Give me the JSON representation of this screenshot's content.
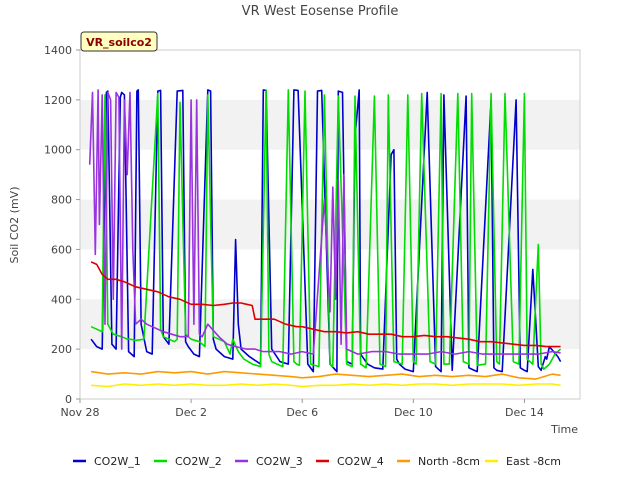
{
  "chart_data": {
    "type": "line",
    "title": "VR West Eosense Profile",
    "badge": "VR_soilco2",
    "xlabel": "Time",
    "ylabel": "Soil CO2 (mV)",
    "xlim": [
      0,
      18
    ],
    "ylim": [
      0,
      1400
    ],
    "yticks": [
      0,
      200,
      400,
      600,
      800,
      1000,
      1200,
      1400
    ],
    "xticks": [
      {
        "value": 0,
        "label": "Nov 28"
      },
      {
        "value": 4,
        "label": "Dec 2"
      },
      {
        "value": 8,
        "label": "Dec 6"
      },
      {
        "value": 12,
        "label": "Dec 10"
      },
      {
        "value": 16,
        "label": "Dec 14"
      }
    ],
    "grid": "horizontal-bands",
    "legend": "bottom",
    "series": [
      {
        "name": "CO2W_1",
        "color": "#0000cc",
        "x": [
          0.4,
          0.6,
          0.8,
          0.95,
          1.0,
          1.05,
          1.15,
          1.3,
          1.45,
          1.5,
          1.6,
          1.75,
          1.95,
          2.05,
          2.1,
          2.2,
          2.4,
          2.6,
          2.8,
          2.9,
          3.0,
          3.2,
          3.5,
          3.7,
          3.8,
          3.9,
          4.1,
          4.3,
          4.6,
          4.7,
          4.8,
          4.9,
          5.2,
          5.5,
          5.6,
          5.7,
          5.8,
          6.1,
          6.5,
          6.6,
          6.7,
          6.9,
          7.2,
          7.5,
          7.7,
          7.85,
          8.2,
          8.4,
          8.55,
          8.7,
          9.0,
          9.25,
          9.3,
          9.45,
          9.6,
          9.8,
          9.9,
          10.05,
          10.1,
          10.35,
          10.6,
          10.9,
          11.2,
          11.3,
          11.4,
          11.5,
          11.7,
          12.0,
          12.5,
          12.8,
          12.9,
          13.0,
          13.1,
          13.4,
          13.9,
          14.0,
          14.1,
          14.3,
          14.8,
          14.9,
          15.0,
          15.2,
          15.7,
          15.85,
          16.0,
          16.1,
          16.3,
          16.5,
          16.6,
          16.75,
          16.8,
          16.9,
          17.2,
          17.3
        ],
        "y": [
          240,
          210,
          200,
          1230,
          1235,
          900,
          220,
          200,
          1210,
          1230,
          1220,
          190,
          170,
          1235,
          1240,
          300,
          190,
          180,
          1235,
          1238,
          250,
          220,
          1235,
          1238,
          230,
          210,
          180,
          170,
          1240,
          1235,
          240,
          200,
          170,
          160,
          640,
          300,
          200,
          170,
          140,
          1240,
          1238,
          200,
          150,
          140,
          1240,
          1238,
          140,
          110,
          1235,
          1238,
          140,
          110,
          1235,
          1230,
          150,
          140,
          1050,
          1240,
          180,
          140,
          125,
          120,
          980,
          1000,
          160,
          140,
          120,
          110,
          1230,
          130,
          120,
          110,
          1220,
          115,
          1215,
          125,
          120,
          110,
          1200,
          125,
          115,
          110,
          1200,
          125,
          115,
          110,
          520,
          130,
          115,
          170,
          160,
          210,
          170,
          150
        ]
      },
      {
        "name": "CO2W_2",
        "color": "#00dd00",
        "x": [
          0.4,
          0.6,
          0.8,
          0.9,
          1.0,
          1.2,
          1.5,
          1.7,
          1.8,
          2.0,
          2.3,
          2.8,
          2.9,
          3.0,
          3.2,
          3.4,
          3.5,
          3.6,
          3.8,
          4.0,
          4.3,
          4.5,
          4.6,
          4.8,
          5.0,
          5.2,
          5.4,
          5.5,
          5.7,
          5.9,
          6.2,
          6.5,
          6.7,
          6.8,
          6.9,
          7.1,
          7.3,
          7.5,
          7.7,
          7.8,
          7.9,
          8.1,
          8.3,
          8.6,
          8.8,
          9.0,
          9.1,
          9.3,
          9.6,
          9.8,
          9.9,
          10.1,
          10.3,
          10.6,
          10.8,
          11.0,
          11.1,
          11.3,
          11.6,
          11.8,
          12.0,
          12.1,
          12.3,
          12.6,
          12.8,
          13.0,
          13.1,
          13.3,
          13.6,
          13.8,
          14.0,
          14.1,
          14.3,
          14.6,
          14.8,
          15.0,
          15.1,
          15.3,
          15.6,
          15.8,
          16.0,
          16.1,
          16.3,
          16.5,
          16.6,
          16.7,
          16.9,
          17.1,
          17.3
        ],
        "y": [
          290,
          280,
          270,
          1220,
          300,
          260,
          250,
          240,
          240,
          235,
          240,
          1225,
          280,
          250,
          240,
          230,
          240,
          1190,
          260,
          240,
          230,
          210,
          1220,
          250,
          240,
          230,
          180,
          240,
          190,
          160,
          140,
          130,
          1240,
          180,
          150,
          140,
          130,
          1240,
          150,
          140,
          135,
          1235,
          140,
          130,
          1220,
          140,
          130,
          1215,
          140,
          130,
          1215,
          140,
          125,
          1215,
          140,
          130,
          1220,
          150,
          140,
          1220,
          150,
          140,
          1225,
          150,
          140,
          1225,
          140,
          140,
          1225,
          150,
          140,
          1225,
          135,
          140,
          1225,
          150,
          140,
          1225,
          150,
          140,
          1225,
          160,
          140,
          620,
          140,
          120,
          140,
          180,
          200
        ]
      },
      {
        "name": "CO2W_3",
        "color": "#9933dd",
        "x": [
          0.35,
          0.45,
          0.55,
          0.65,
          0.7,
          0.8,
          0.9,
          1.0,
          1.1,
          1.2,
          1.3,
          1.4,
          1.5,
          1.6,
          1.7,
          1.8,
          1.9,
          2.0,
          2.2,
          2.4,
          2.6,
          2.8,
          3.0,
          3.3,
          3.6,
          3.9,
          4.0,
          4.1,
          4.2,
          4.3,
          4.4,
          4.6,
          5.0,
          5.3,
          5.6,
          6.0,
          6.3,
          6.6,
          6.9,
          7.2,
          7.6,
          8.0,
          8.4,
          8.8,
          9.0,
          9.1,
          9.2,
          9.3,
          9.4,
          9.5,
          9.6,
          9.8,
          10.0,
          10.5,
          11.0,
          11.5,
          12.0,
          12.5,
          13.0,
          13.5,
          14.0,
          14.5,
          15.0,
          15.5,
          16.0,
          16.5,
          17.0,
          17.3
        ],
        "y": [
          940,
          1230,
          580,
          1240,
          700,
          1220,
          300,
          1230,
          1200,
          400,
          1230,
          1210,
          200,
          1200,
          900,
          1230,
          600,
          300,
          320,
          300,
          290,
          280,
          270,
          260,
          250,
          250,
          1200,
          300,
          1200,
          260,
          250,
          300,
          250,
          220,
          210,
          200,
          200,
          190,
          190,
          190,
          180,
          190,
          180,
          800,
          350,
          850,
          400,
          880,
          220,
          900,
          200,
          190,
          180,
          190,
          190,
          180,
          180,
          180,
          190,
          180,
          190,
          180,
          180,
          180,
          180,
          180,
          190,
          185
        ]
      },
      {
        "name": "CO2W_4",
        "color": "#dd0000",
        "x": [
          0.4,
          0.6,
          0.8,
          1.0,
          1.3,
          1.6,
          2.0,
          2.4,
          2.8,
          3.2,
          3.6,
          4.0,
          4.4,
          4.8,
          5.2,
          5.5,
          5.8,
          6.0,
          6.2,
          6.3,
          6.6,
          7.0,
          7.4,
          7.8,
          8.0,
          8.4,
          8.8,
          9.2,
          9.6,
          10.0,
          10.4,
          10.8,
          11.2,
          11.6,
          12.0,
          12.4,
          12.8,
          13.2,
          13.6,
          14.0,
          14.4,
          14.8,
          15.2,
          15.6,
          16.0,
          16.4,
          16.8,
          17.2,
          17.3
        ],
        "y": [
          550,
          540,
          500,
          480,
          480,
          470,
          450,
          440,
          430,
          410,
          400,
          380,
          380,
          375,
          380,
          385,
          385,
          380,
          375,
          320,
          320,
          320,
          300,
          290,
          290,
          280,
          270,
          270,
          265,
          270,
          260,
          260,
          260,
          250,
          250,
          255,
          250,
          250,
          245,
          240,
          230,
          230,
          225,
          220,
          215,
          215,
          210,
          210,
          210
        ]
      },
      {
        "name": "North -8cm",
        "color": "#ff9900",
        "x": [
          0.4,
          1.0,
          1.6,
          2.2,
          2.8,
          3.4,
          4.0,
          4.6,
          5.2,
          5.8,
          6.4,
          7.0,
          7.6,
          8.0,
          8.6,
          9.2,
          9.8,
          10.4,
          11.0,
          11.6,
          12.2,
          12.8,
          13.4,
          14.0,
          14.6,
          15.2,
          15.8,
          16.4,
          17.0,
          17.3
        ],
        "y": [
          110,
          100,
          105,
          100,
          110,
          105,
          110,
          100,
          110,
          105,
          100,
          95,
          90,
          85,
          90,
          100,
          95,
          90,
          95,
          100,
          90,
          95,
          90,
          95,
          90,
          100,
          85,
          80,
          100,
          95
        ]
      },
      {
        "name": "East -8cm",
        "color": "#ffee00",
        "x": [
          0.4,
          1.0,
          1.6,
          2.2,
          2.8,
          3.4,
          4.0,
          4.6,
          5.2,
          5.8,
          6.4,
          7.0,
          7.6,
          8.0,
          8.6,
          9.2,
          9.8,
          10.4,
          11.0,
          11.6,
          12.2,
          12.8,
          13.4,
          14.0,
          14.6,
          15.2,
          15.8,
          16.4,
          17.0,
          17.3
        ],
        "y": [
          55,
          50,
          60,
          55,
          60,
          55,
          60,
          55,
          55,
          60,
          55,
          60,
          55,
          50,
          55,
          55,
          60,
          55,
          60,
          55,
          60,
          60,
          55,
          60,
          60,
          60,
          55,
          60,
          60,
          55
        ]
      }
    ]
  }
}
